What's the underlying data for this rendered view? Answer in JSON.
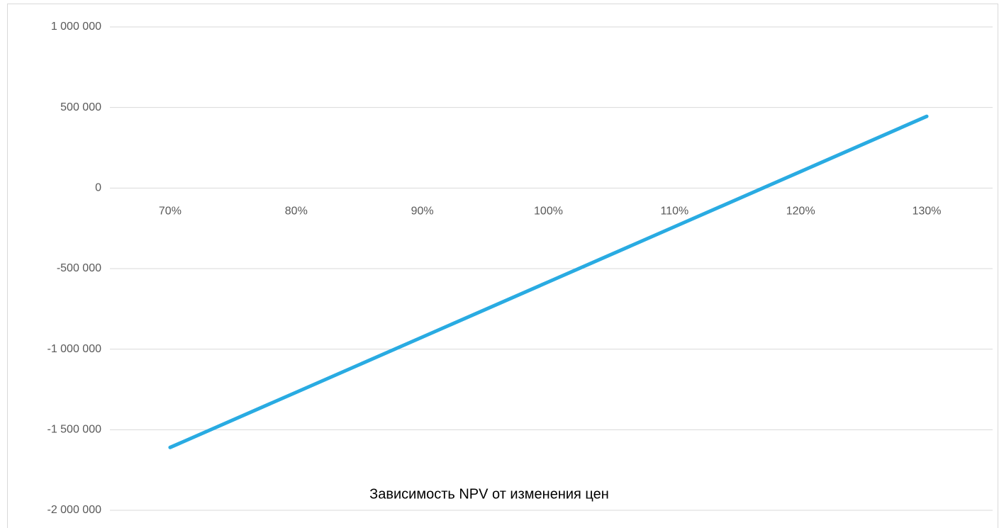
{
  "chart_data": {
    "type": "line",
    "title": "Зависимость NPV от изменения цен",
    "categories": [
      "70%",
      "80%",
      "90%",
      "100%",
      "110%",
      "120%",
      "130%"
    ],
    "series": [
      {
        "name": "NPV",
        "color": "#29abe2",
        "values": [
          -1610000,
          -1267500,
          -925000,
          -582500,
          -240000,
          102500,
          445000
        ]
      }
    ],
    "ylim": [
      -2000000,
      1000000
    ],
    "yticks": [
      {
        "value": -2000000,
        "label": "-2 000 000"
      },
      {
        "value": -1500000,
        "label": "-1 500 000"
      },
      {
        "value": -1000000,
        "label": "-1 000 000"
      },
      {
        "value": -500000,
        "label": "-500 000"
      },
      0,
      {
        "value": 500000,
        "label": "500 000"
      },
      {
        "value": 1000000,
        "label": "1 000 000"
      }
    ],
    "grid": true
  }
}
